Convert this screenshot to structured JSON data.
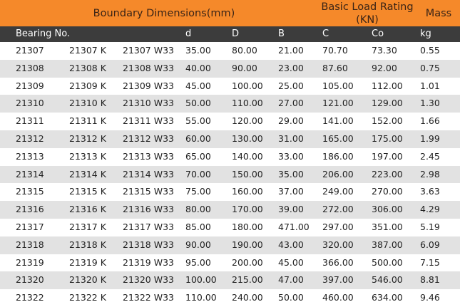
{
  "title": {
    "dimensions": "Boundary Dimensions(mm)",
    "load_line1": "Basic Load Rating",
    "load_line2": "(KN)",
    "mass": "Mass"
  },
  "headers": [
    "Bearing No.",
    "d",
    "D",
    "B",
    "C",
    "Co",
    "kg"
  ],
  "rows": [
    [
      "21307",
      "21307 K",
      "21307 W33",
      "35.00",
      "80.00",
      "21.00",
      "70.70",
      "73.30",
      "0.55"
    ],
    [
      "21308",
      "21308 K",
      "21308 W33",
      "40.00",
      "90.00",
      "23.00",
      "87.60",
      "92.00",
      "0.75"
    ],
    [
      "21309",
      "21309 K",
      "21309 W33",
      "45.00",
      "100.00",
      "25.00",
      "105.00",
      "112.00",
      "1.01"
    ],
    [
      "21310",
      "21310 K",
      "21310 W33",
      "50.00",
      "110.00",
      "27.00",
      "121.00",
      "129.00",
      "1.30"
    ],
    [
      "21311",
      "21311 K",
      "21311 W33",
      "55.00",
      "120.00",
      "29.00",
      "141.00",
      "152.00",
      "1.66"
    ],
    [
      "21312",
      "21312 K",
      "21312 W33",
      "60.00",
      "130.00",
      "31.00",
      "165.00",
      "175.00",
      "1.99"
    ],
    [
      "21313",
      "21313 K",
      "21313 W33",
      "65.00",
      "140.00",
      "33.00",
      "186.00",
      "197.00",
      "2.45"
    ],
    [
      "21314",
      "21314 K",
      "21314 W33",
      "70.00",
      "150.00",
      "35.00",
      "206.00",
      "223.00",
      "2.98"
    ],
    [
      "21315",
      "21315 K",
      "21315 W33",
      "75.00",
      "160.00",
      "37.00",
      "249.00",
      "270.00",
      "3.63"
    ],
    [
      "21316",
      "21316 K",
      "21316 W33",
      "80.00",
      "170.00",
      "39.00",
      "272.00",
      "306.00",
      "4.29"
    ],
    [
      "21317",
      "21317 K",
      "21317 W33",
      "85.00",
      "180.00",
      "471.00",
      "297.00",
      "351.00",
      "5.19"
    ],
    [
      "21318",
      "21318 K",
      "21318 W33",
      "90.00",
      "190.00",
      "43.00",
      "320.00",
      "387.00",
      "6.09"
    ],
    [
      "21319",
      "21319 K",
      "21319 W33",
      "95.00",
      "200.00",
      "45.00",
      "366.00",
      "500.00",
      "7.15"
    ],
    [
      "21320",
      "21320 K",
      "21320 W33",
      "100.00",
      "215.00",
      "47.00",
      "397.00",
      "546.00",
      "8.81"
    ],
    [
      "21322",
      "21322 K",
      "21322 W33",
      "110.00",
      "240.00",
      "50.00",
      "460.00",
      "634.00",
      "9.46"
    ]
  ],
  "colors": {
    "title_bg": "#f5892a",
    "header_bg": "#3c3c3c",
    "stripe_bg": "#e2e2e2"
  }
}
